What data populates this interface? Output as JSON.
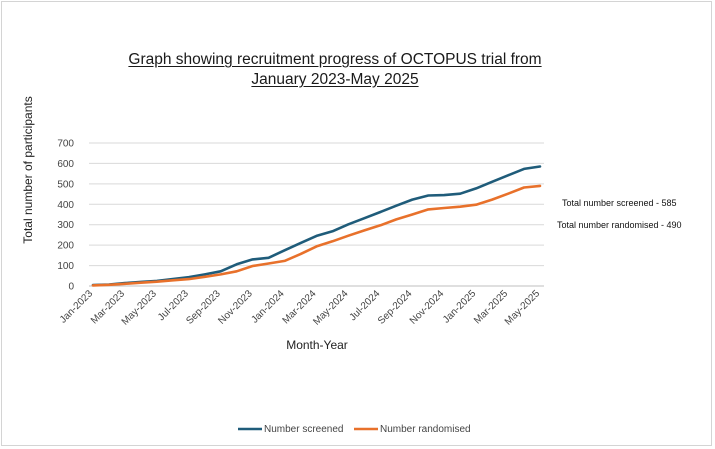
{
  "chart_data": {
    "type": "line",
    "title": "Graph showing recruitment progress of OCTOPUS trial from January 2023-May 2025",
    "title_line1": "Graph showing recruitment progress of OCTOPUS trial from",
    "title_line2": "January 2023-May 2025",
    "xlabel": "Month-Year",
    "ylabel": "Total number of participants",
    "ylim": [
      0,
      700
    ],
    "yticks": [
      0,
      100,
      200,
      300,
      400,
      500,
      600,
      700
    ],
    "grid": true,
    "legend_position": "bottom",
    "x": [
      "Jan-2023",
      "Feb-2023",
      "Mar-2023",
      "Apr-2023",
      "May-2023",
      "Jun-2023",
      "Jul-2023",
      "Aug-2023",
      "Sep-2023",
      "Oct-2023",
      "Nov-2023",
      "Dec-2023",
      "Jan-2024",
      "Feb-2024",
      "Mar-2024",
      "Apr-2024",
      "May-2024",
      "Jun-2024",
      "Jul-2024",
      "Aug-2024",
      "Sep-2024",
      "Oct-2024",
      "Nov-2024",
      "Dec-2024",
      "Jan-2025",
      "Feb-2025",
      "Mar-2025",
      "Apr-2025",
      "May-2025"
    ],
    "xtick_labels": [
      "Jan-2023",
      "Mar-2023",
      "May-2023",
      "Jul-2023",
      "Sep-2023",
      "Nov-2023",
      "Jan-2024",
      "Mar-2024",
      "May-2024",
      "Jul-2024",
      "Sep-2024",
      "Nov-2024",
      "Jan-2025",
      "Mar-2025",
      "May-2025"
    ],
    "series": [
      {
        "name": "Number screened",
        "color": "#1f5c7a",
        "values": [
          5,
          7,
          14,
          20,
          25,
          34,
          43,
          57,
          72,
          106,
          130,
          138,
          175,
          210,
          245,
          268,
          302,
          332,
          362,
          393,
          423,
          443,
          445,
          452,
          478,
          510,
          542,
          573,
          585
        ]
      },
      {
        "name": "Number randomised",
        "color": "#e8712b",
        "values": [
          3,
          6,
          11,
          16,
          21,
          28,
          34,
          45,
          57,
          72,
          98,
          110,
          123,
          156,
          194,
          219,
          246,
          272,
          297,
          326,
          350,
          375,
          382,
          388,
          398,
          423,
          452,
          482,
          490
        ]
      }
    ],
    "annotations": [
      "Total number screened - 585",
      "Total number randomised - 490"
    ]
  }
}
